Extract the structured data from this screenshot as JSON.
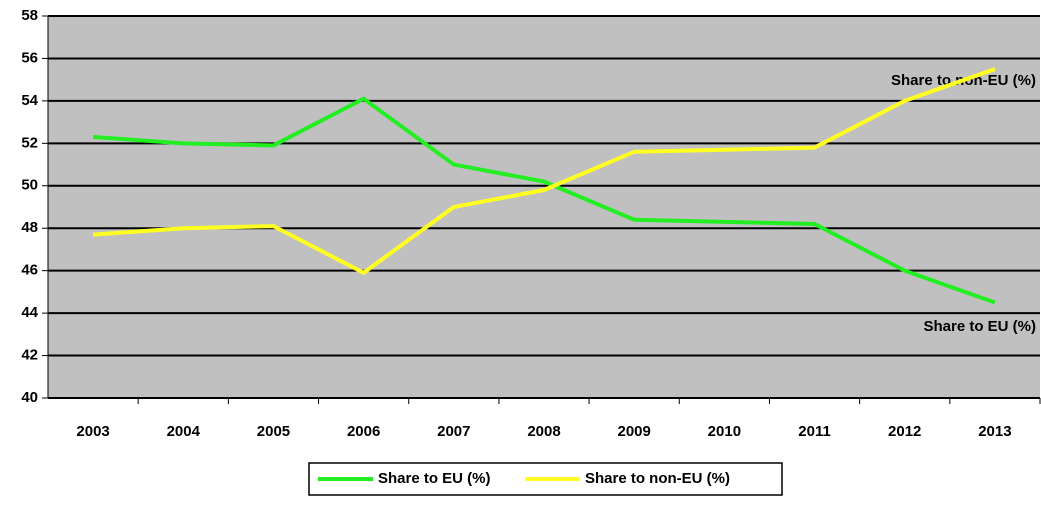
{
  "chart_data": {
    "type": "line",
    "categories": [
      "2003",
      "2004",
      "2005",
      "2006",
      "2007",
      "2008",
      "2009",
      "2010",
      "2011",
      "2012",
      "2013"
    ],
    "series": [
      {
        "name": "Share to EU (%)",
        "color": "#22ee22",
        "values": [
          52.3,
          52.0,
          51.9,
          54.1,
          51.0,
          50.2,
          48.4,
          48.3,
          48.2,
          46.0,
          44.5
        ]
      },
      {
        "name": "Share to non-EU (%)",
        "color": "#ffff22",
        "values": [
          47.7,
          48.0,
          48.1,
          45.9,
          49.0,
          49.8,
          51.6,
          51.7,
          51.8,
          54.0,
          55.5
        ]
      }
    ],
    "annotations": [
      "Share to non-EU (%)",
      "Share to EU (%)"
    ],
    "ylim": [
      40,
      58
    ],
    "yticks": [
      40,
      42,
      44,
      46,
      48,
      50,
      52,
      54,
      56,
      58
    ],
    "grid": true,
    "legend": "bottom"
  }
}
